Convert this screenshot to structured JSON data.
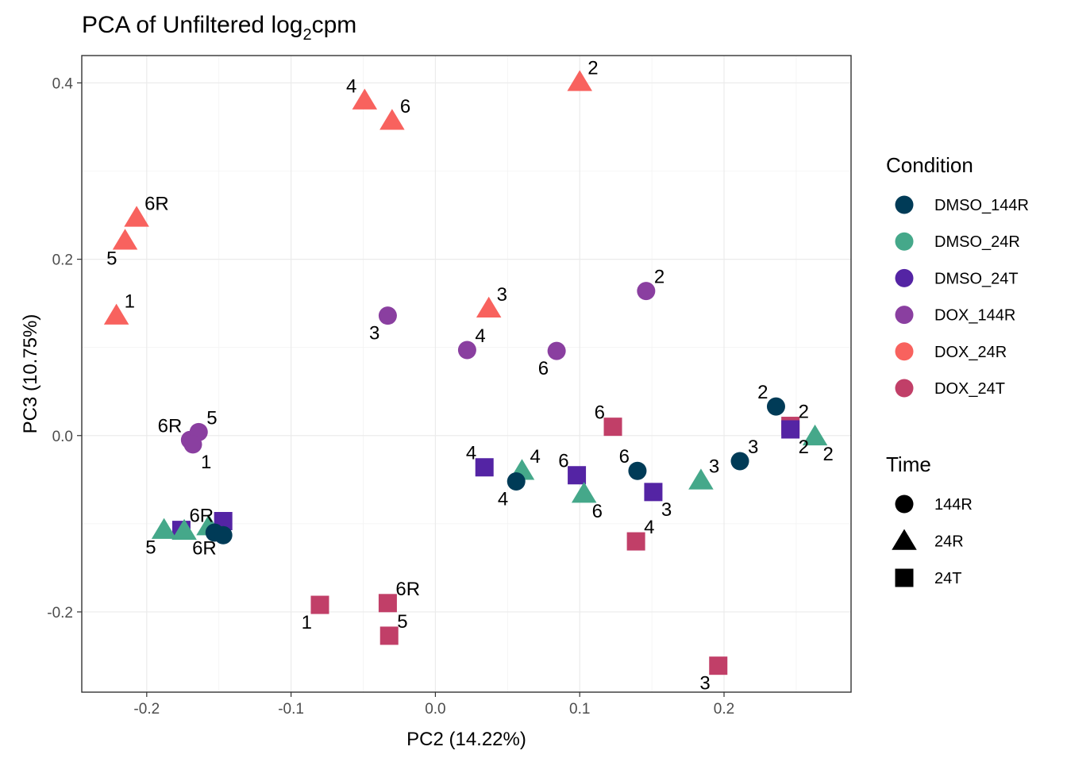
{
  "chart_data": {
    "type": "scatter",
    "title": {
      "main": "PCA of Unfiltered log",
      "sub": "2",
      "rest": "cpm"
    },
    "xlabel": "PC2 (14.22%)",
    "ylabel": "PC3 (10.75%)",
    "xlim": [
      -0.245,
      0.288
    ],
    "ylim": [
      -0.291,
      0.431
    ],
    "xticks": [
      -0.2,
      -0.1,
      0.0,
      0.1,
      0.2
    ],
    "xtick_labels": [
      "-0.2",
      "-0.1",
      "0.0",
      "0.1",
      "0.2"
    ],
    "yticks": [
      -0.2,
      0.0,
      0.2,
      0.4
    ],
    "ytick_labels": [
      "-0.2",
      "0.0",
      "0.2",
      "0.4"
    ],
    "grid": true,
    "legend_position": "right",
    "legends": {
      "condition": {
        "title": "Condition",
        "entries": [
          {
            "label": "DMSO_144R",
            "color": "#003B57"
          },
          {
            "label": "DMSO_24R",
            "color": "#45A88A"
          },
          {
            "label": "DMSO_24T",
            "color": "#5424A4"
          },
          {
            "label": "DOX_144R",
            "color": "#8A3FA0"
          },
          {
            "label": "DOX_24R",
            "color": "#F8625E"
          },
          {
            "label": "DOX_24T",
            "color": "#C13F68"
          }
        ]
      },
      "time": {
        "title": "Time",
        "entries": [
          {
            "label": "144R",
            "shape": "circle"
          },
          {
            "label": "24R",
            "shape": "triangle"
          },
          {
            "label": "24T",
            "shape": "square"
          }
        ]
      }
    },
    "points": [
      {
        "x": -0.221,
        "y": 0.136,
        "condition": "DOX_24R",
        "time": "24R",
        "label": "1",
        "lpos": "ne"
      },
      {
        "x": -0.215,
        "y": 0.221,
        "condition": "DOX_24R",
        "time": "24R",
        "label": "5",
        "lpos": "sw"
      },
      {
        "x": -0.207,
        "y": 0.247,
        "condition": "DOX_24R",
        "time": "24R",
        "label": "6R",
        "lpos": "ne"
      },
      {
        "x": -0.049,
        "y": 0.38,
        "condition": "DOX_24R",
        "time": "24R",
        "label": "4",
        "lpos": "nw"
      },
      {
        "x": -0.03,
        "y": 0.357,
        "condition": "DOX_24R",
        "time": "24R",
        "label": "6",
        "lpos": "ne"
      },
      {
        "x": 0.1,
        "y": 0.401,
        "condition": "DOX_24R",
        "time": "24R",
        "label": "2",
        "lpos": "ne"
      },
      {
        "x": 0.037,
        "y": 0.144,
        "condition": "DOX_24R",
        "time": "24R",
        "label": "3",
        "lpos": "ne"
      },
      {
        "x": -0.033,
        "y": 0.136,
        "condition": "DOX_144R",
        "time": "144R",
        "label": "3",
        "lpos": "sw"
      },
      {
        "x": 0.022,
        "y": 0.097,
        "condition": "DOX_144R",
        "time": "144R",
        "label": "4",
        "lpos": "ne"
      },
      {
        "x": 0.084,
        "y": 0.096,
        "condition": "DOX_144R",
        "time": "144R",
        "label": "6",
        "lpos": "sw"
      },
      {
        "x": 0.146,
        "y": 0.164,
        "condition": "DOX_144R",
        "time": "144R",
        "label": "2",
        "lpos": "ne"
      },
      {
        "x": -0.17,
        "y": -0.005,
        "condition": "DOX_144R",
        "time": "144R",
        "label": "6R",
        "lpos": "nw"
      },
      {
        "x": -0.164,
        "y": 0.004,
        "condition": "DOX_144R",
        "time": "144R",
        "label": "5",
        "lpos": "ne"
      },
      {
        "x": -0.168,
        "y": -0.01,
        "condition": "DOX_144R",
        "time": "144R",
        "label": "1",
        "lpos": "se"
      },
      {
        "x": 0.123,
        "y": 0.01,
        "condition": "DOX_24T",
        "time": "24T",
        "label": "6",
        "lpos": "nw"
      },
      {
        "x": 0.139,
        "y": -0.12,
        "condition": "DOX_24T",
        "time": "24T",
        "label": "4",
        "lpos": "ne"
      },
      {
        "x": -0.08,
        "y": -0.192,
        "condition": "DOX_24T",
        "time": "24T",
        "label": "1",
        "lpos": "sw"
      },
      {
        "x": -0.033,
        "y": -0.19,
        "condition": "DOX_24T",
        "time": "24T",
        "label": "6R",
        "lpos": "ne"
      },
      {
        "x": -0.032,
        "y": -0.227,
        "condition": "DOX_24T",
        "time": "24T",
        "label": "5",
        "lpos": "ne"
      },
      {
        "x": 0.196,
        "y": -0.261,
        "condition": "DOX_24T",
        "time": "24T",
        "label": "3",
        "lpos": "sw"
      },
      {
        "x": 0.246,
        "y": 0.011,
        "condition": "DOX_24T",
        "time": "24T",
        "label": "2",
        "lpos": "ne"
      },
      {
        "x": 0.034,
        "y": -0.036,
        "condition": "DMSO_24T",
        "time": "24T",
        "label": "4",
        "lpos": "nw"
      },
      {
        "x": 0.098,
        "y": -0.045,
        "condition": "DMSO_24T",
        "time": "24T",
        "label": "6",
        "lpos": "nw"
      },
      {
        "x": 0.151,
        "y": -0.064,
        "condition": "DMSO_24T",
        "time": "24T",
        "label": "3",
        "lpos": "se"
      },
      {
        "x": 0.246,
        "y": 0.007,
        "condition": "DMSO_24T",
        "time": "24T",
        "label": "2",
        "lpos": "se"
      },
      {
        "x": -0.147,
        "y": -0.097,
        "condition": "DMSO_24T",
        "time": "24T",
        "label": "",
        "lpos": "ne"
      },
      {
        "x": -0.176,
        "y": -0.107,
        "condition": "DMSO_24T",
        "time": "24T",
        "label": "6R",
        "lpos": "ne"
      },
      {
        "x": 0.06,
        "y": -0.04,
        "condition": "DMSO_24R",
        "time": "24R",
        "label": "4",
        "lpos": "ne"
      },
      {
        "x": 0.103,
        "y": -0.066,
        "condition": "DMSO_24R",
        "time": "24R",
        "label": "6",
        "lpos": "se"
      },
      {
        "x": 0.184,
        "y": -0.051,
        "condition": "DMSO_24R",
        "time": "24R",
        "label": "3",
        "lpos": "ne"
      },
      {
        "x": 0.263,
        "y": -0.001,
        "condition": "DMSO_24R",
        "time": "24R",
        "label": "2",
        "lpos": "se"
      },
      {
        "x": -0.188,
        "y": -0.107,
        "condition": "DMSO_24R",
        "time": "24R",
        "label": "5",
        "lpos": "sw"
      },
      {
        "x": -0.174,
        "y": -0.108,
        "condition": "DMSO_24R",
        "time": "24R",
        "label": "6R",
        "lpos": "se"
      },
      {
        "x": -0.157,
        "y": -0.103,
        "condition": "DMSO_24R",
        "time": "24R",
        "label": "",
        "lpos": "ne"
      },
      {
        "x": 0.056,
        "y": -0.052,
        "condition": "DMSO_144R",
        "time": "144R",
        "label": "4",
        "lpos": "sw"
      },
      {
        "x": 0.14,
        "y": -0.04,
        "condition": "DMSO_144R",
        "time": "144R",
        "label": "6",
        "lpos": "nw"
      },
      {
        "x": 0.211,
        "y": -0.029,
        "condition": "DMSO_144R",
        "time": "144R",
        "label": "3",
        "lpos": "ne"
      },
      {
        "x": 0.236,
        "y": 0.033,
        "condition": "DMSO_144R",
        "time": "144R",
        "label": "2",
        "lpos": "nw"
      },
      {
        "x": -0.153,
        "y": -0.11,
        "condition": "DMSO_144R",
        "time": "144R",
        "label": "",
        "lpos": "ne"
      },
      {
        "x": -0.147,
        "y": -0.113,
        "condition": "DMSO_144R",
        "time": "144R",
        "label": "",
        "lpos": "ne"
      }
    ]
  }
}
